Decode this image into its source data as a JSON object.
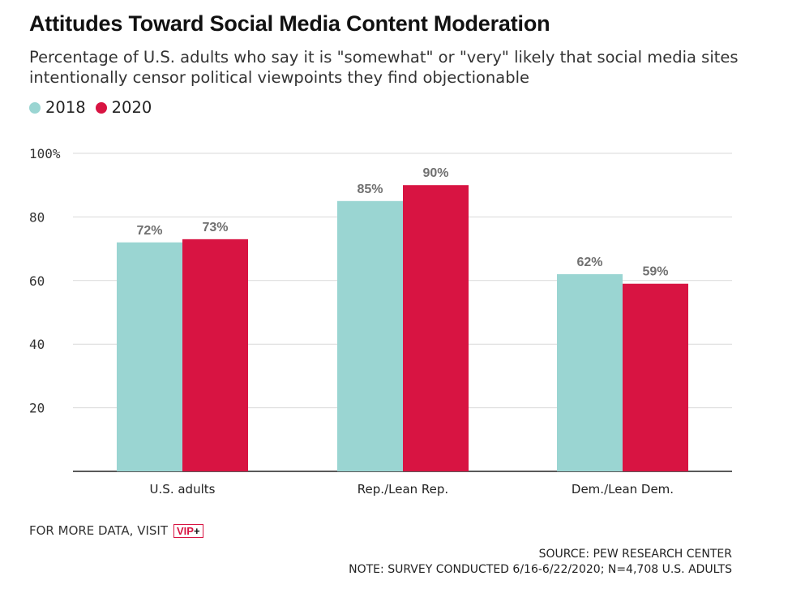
{
  "header": {
    "title": "Attitudes Toward Social Media Content Moderation",
    "subtitle": "Percentage of U.S. adults who say it is \"somewhat\" or \"very\" likely that social media sites intentionally censor political viewpoints they find objectionable"
  },
  "legend": {
    "items": [
      {
        "label": "2018",
        "color": "#9ad5d2"
      },
      {
        "label": "2020",
        "color": "#d81442"
      }
    ]
  },
  "chart_data": {
    "type": "bar",
    "title": "Attitudes Toward Social Media Content Moderation",
    "subtitle": "Percentage of U.S. adults who say it is \"somewhat\" or \"very\" likely that social media sites intentionally censor political viewpoints they find objectionable",
    "categories": [
      "U.S. adults",
      "Rep./Lean Rep.",
      "Dem./Lean Dem."
    ],
    "series": [
      {
        "name": "2018",
        "values": [
          72,
          85,
          62
        ],
        "labels": [
          "72%",
          "85%",
          "62%"
        ],
        "color": "#9ad5d2"
      },
      {
        "name": "2020",
        "values": [
          73,
          90,
          59
        ],
        "labels": [
          "73%",
          "90%",
          "59%"
        ],
        "color": "#d81442"
      }
    ],
    "ylim": [
      0,
      100
    ],
    "yticks": [
      {
        "value": 20,
        "label": "20"
      },
      {
        "value": 40,
        "label": "40"
      },
      {
        "value": 60,
        "label": "60"
      },
      {
        "value": 80,
        "label": "80"
      },
      {
        "value": 100,
        "label": "100%"
      }
    ],
    "xlabel": "",
    "ylabel": "",
    "grid": true,
    "legend_position": "top-left"
  },
  "footer": {
    "visit_text": "FOR MORE DATA, VISIT",
    "vip_text": "VIP",
    "vip_plus": "+",
    "source": "SOURCE: PEW RESEARCH CENTER",
    "note": "NOTE: SURVEY CONDUCTED 6/16-6/22/2020; N=4,708 U.S. ADULTS"
  }
}
